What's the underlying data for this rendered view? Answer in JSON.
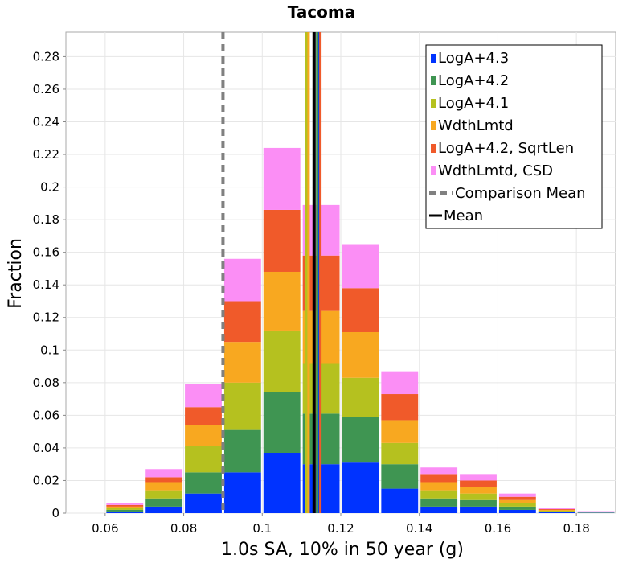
{
  "chart_data": {
    "type": "bar",
    "stacked": true,
    "title": "Tacoma",
    "xlabel": "1.0s SA, 10% in 50 year (g)",
    "ylabel": "Fraction",
    "xlim": [
      0.05,
      0.19
    ],
    "ylim": [
      0,
      0.295
    ],
    "bin_width": 0.01,
    "x_ticks": [
      "0.06",
      "0.08",
      "0.1",
      "0.12",
      "0.14",
      "0.16",
      "0.18"
    ],
    "x_tick_values": [
      0.06,
      0.08,
      0.1,
      0.12,
      0.14,
      0.16,
      0.18
    ],
    "y_ticks": [
      "0",
      "0.02",
      "0.04",
      "0.06",
      "0.08",
      "0.1",
      "0.12",
      "0.14",
      "0.16",
      "0.18",
      "0.2",
      "0.22",
      "0.24",
      "0.26",
      "0.28"
    ],
    "y_tick_values": [
      0,
      0.02,
      0.04,
      0.06,
      0.08,
      0.1,
      0.12,
      0.14,
      0.16,
      0.18,
      0.2,
      0.22,
      0.24,
      0.26,
      0.28
    ],
    "bin_centers": [
      0.065,
      0.075,
      0.085,
      0.095,
      0.105,
      0.115,
      0.125,
      0.135,
      0.145,
      0.155,
      0.165,
      0.175,
      0.185
    ],
    "series": [
      {
        "name": "LogA+4.3",
        "color": "#0033ff",
        "values": [
          0.001,
          0.004,
          0.012,
          0.025,
          0.037,
          0.03,
          0.031,
          0.015,
          0.004,
          0.004,
          0.002,
          0.0005,
          0.0002
        ]
      },
      {
        "name": "LogA+4.2",
        "color": "#3f9552",
        "values": [
          0.001,
          0.005,
          0.013,
          0.026,
          0.037,
          0.031,
          0.028,
          0.015,
          0.005,
          0.004,
          0.002,
          0.0005,
          0.0002
        ]
      },
      {
        "name": "LogA+4.1",
        "color": "#b5c11f",
        "values": [
          0.001,
          0.005,
          0.016,
          0.029,
          0.038,
          0.031,
          0.024,
          0.013,
          0.005,
          0.004,
          0.002,
          0.0005,
          0.0002
        ]
      },
      {
        "name": "WdthLmtd",
        "color": "#f8a820",
        "values": [
          0.001,
          0.005,
          0.013,
          0.025,
          0.036,
          0.032,
          0.028,
          0.014,
          0.005,
          0.004,
          0.002,
          0.0005,
          0.0002
        ]
      },
      {
        "name": "LogA+4.2, SqrtLen",
        "color": "#f05a2a",
        "values": [
          0.001,
          0.003,
          0.011,
          0.025,
          0.038,
          0.034,
          0.027,
          0.016,
          0.005,
          0.004,
          0.002,
          0.0005,
          0.0002
        ]
      },
      {
        "name": "WdthLmtd, CSD",
        "color": "#fb8ef5",
        "values": [
          0.001,
          0.005,
          0.014,
          0.026,
          0.038,
          0.031,
          0.027,
          0.014,
          0.004,
          0.004,
          0.002,
          0.0005,
          0.0002
        ]
      }
    ],
    "mean_lines": [
      {
        "name": "LogA+4.3",
        "x": 0.1145,
        "color": "#0033ff"
      },
      {
        "name": "LogA+4.2",
        "x": 0.114,
        "color": "#3f9552"
      },
      {
        "name": "LogA+4.1",
        "x": 0.1112,
        "color": "#b5c11f"
      },
      {
        "name": "WdthLmtd",
        "x": 0.1118,
        "color": "#f8a820"
      },
      {
        "name": "LogA+4.2, SqrtLen",
        "x": 0.1148,
        "color": "#f05a2a"
      },
      {
        "name": "WdthLmtd, CSD",
        "x": 0.1133,
        "color": "#fb8ef5"
      }
    ],
    "comparison_mean": {
      "name": "Comparison Mean",
      "x": 0.09,
      "color": "#808080",
      "style": "dashed"
    },
    "overall_mean": {
      "name": "Mean",
      "x": 0.1132,
      "color": "#000000"
    },
    "legend": [
      {
        "label": "LogA+4.3",
        "color": "#0033ff",
        "kind": "box"
      },
      {
        "label": "LogA+4.2",
        "color": "#3f9552",
        "kind": "box"
      },
      {
        "label": "LogA+4.1",
        "color": "#b5c11f",
        "kind": "box"
      },
      {
        "label": "WdthLmtd",
        "color": "#f8a820",
        "kind": "box"
      },
      {
        "label": "LogA+4.2, SqrtLen",
        "color": "#f05a2a",
        "kind": "box"
      },
      {
        "label": "WdthLmtd, CSD",
        "color": "#fb8ef5",
        "kind": "box"
      },
      {
        "label": "Comparison Mean",
        "color": "#808080",
        "kind": "dashed"
      },
      {
        "label": "Mean",
        "color": "#000000",
        "kind": "line"
      }
    ],
    "legend_position": "top-right",
    "grid": true
  }
}
